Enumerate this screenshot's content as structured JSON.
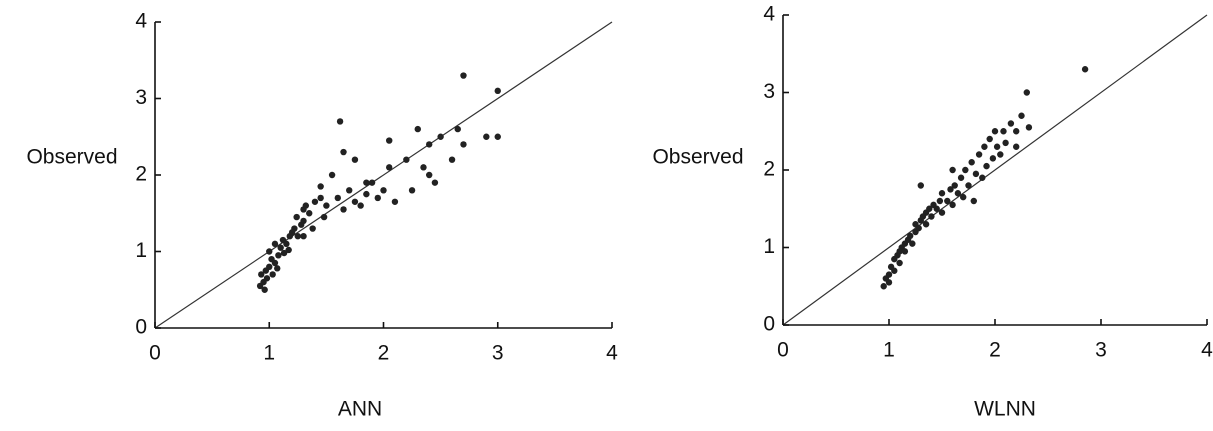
{
  "chart_data": [
    {
      "type": "scatter",
      "x_label": "ANN",
      "y_label": "Observed",
      "color": "#222",
      "xlim": [
        0,
        4
      ],
      "ylim": [
        0,
        4
      ],
      "xticks": [
        0,
        1,
        2,
        3,
        4
      ],
      "yticks": [
        0,
        1,
        2,
        3,
        4
      ],
      "x": [
        0.92,
        0.95,
        0.93,
        0.97,
        1.0,
        0.98,
        1.02,
        1.05,
        1.0,
        1.08,
        1.1,
        1.05,
        1.12,
        1.15,
        1.18,
        1.2,
        1.22,
        1.25,
        1.28,
        1.3,
        0.96,
        1.03,
        1.07,
        1.13,
        1.17,
        1.24,
        1.3,
        1.35,
        1.32,
        1.4,
        1.45,
        1.5,
        1.38,
        1.48,
        1.6,
        1.65,
        1.7,
        1.75,
        1.8,
        1.85,
        1.9,
        1.95,
        2.0,
        2.05,
        1.55,
        1.65,
        1.62,
        1.75,
        1.85,
        2.1,
        2.2,
        2.25,
        2.3,
        2.35,
        2.4,
        2.45,
        2.5,
        2.6,
        2.65,
        2.7,
        2.7,
        2.9,
        3.0,
        3.0,
        2.4,
        1.45,
        2.05,
        1.3
      ],
      "values": [
        0.55,
        0.6,
        0.7,
        0.75,
        0.8,
        0.65,
        0.9,
        0.85,
        1.0,
        0.95,
        1.05,
        1.1,
        1.15,
        1.1,
        1.2,
        1.25,
        1.3,
        1.2,
        1.35,
        1.4,
        0.5,
        0.7,
        0.78,
        0.98,
        1.02,
        1.45,
        1.55,
        1.5,
        1.6,
        1.65,
        1.7,
        1.6,
        1.3,
        1.45,
        1.7,
        1.55,
        1.8,
        1.65,
        1.6,
        1.75,
        1.9,
        1.7,
        1.8,
        2.1,
        2.0,
        2.3,
        2.7,
        2.2,
        1.9,
        1.65,
        2.2,
        1.8,
        2.6,
        2.1,
        2.4,
        1.9,
        2.5,
        2.2,
        2.6,
        2.4,
        3.3,
        2.5,
        3.1,
        2.5,
        2.0,
        1.85,
        2.45,
        1.2
      ]
    },
    {
      "type": "scatter",
      "x_label": "WLNN",
      "y_label": "Observed",
      "color": "#222",
      "xlim": [
        0,
        4
      ],
      "ylim": [
        0,
        4
      ],
      "xticks": [
        0,
        1,
        2,
        3,
        4
      ],
      "yticks": [
        0,
        1,
        2,
        3,
        4
      ],
      "x": [
        0.95,
        0.97,
        1.0,
        1.0,
        1.02,
        1.05,
        1.05,
        1.08,
        1.1,
        1.1,
        1.12,
        1.15,
        1.15,
        1.18,
        1.2,
        1.22,
        1.25,
        1.25,
        1.28,
        1.3,
        1.32,
        1.35,
        1.35,
        1.38,
        1.4,
        1.42,
        1.45,
        1.48,
        1.5,
        1.5,
        1.55,
        1.58,
        1.6,
        1.62,
        1.65,
        1.68,
        1.7,
        1.72,
        1.75,
        1.78,
        1.8,
        1.82,
        1.85,
        1.88,
        1.9,
        1.92,
        1.95,
        1.98,
        2.0,
        2.02,
        2.05,
        2.08,
        2.1,
        2.15,
        2.2,
        2.25,
        2.3,
        2.32,
        1.3,
        1.6,
        2.85,
        2.2
      ],
      "values": [
        0.5,
        0.6,
        0.65,
        0.55,
        0.75,
        0.7,
        0.85,
        0.9,
        0.95,
        0.8,
        1.0,
        1.05,
        0.95,
        1.1,
        1.15,
        1.05,
        1.2,
        1.3,
        1.25,
        1.35,
        1.4,
        1.3,
        1.45,
        1.5,
        1.4,
        1.55,
        1.5,
        1.6,
        1.45,
        1.7,
        1.6,
        1.75,
        1.55,
        1.8,
        1.7,
        1.9,
        1.65,
        2.0,
        1.8,
        2.1,
        1.6,
        1.95,
        2.2,
        1.9,
        2.3,
        2.05,
        2.4,
        2.15,
        2.5,
        2.3,
        2.2,
        2.5,
        2.35,
        2.6,
        2.3,
        2.7,
        3.0,
        2.55,
        1.8,
        2.0,
        3.3,
        2.5
      ]
    }
  ]
}
